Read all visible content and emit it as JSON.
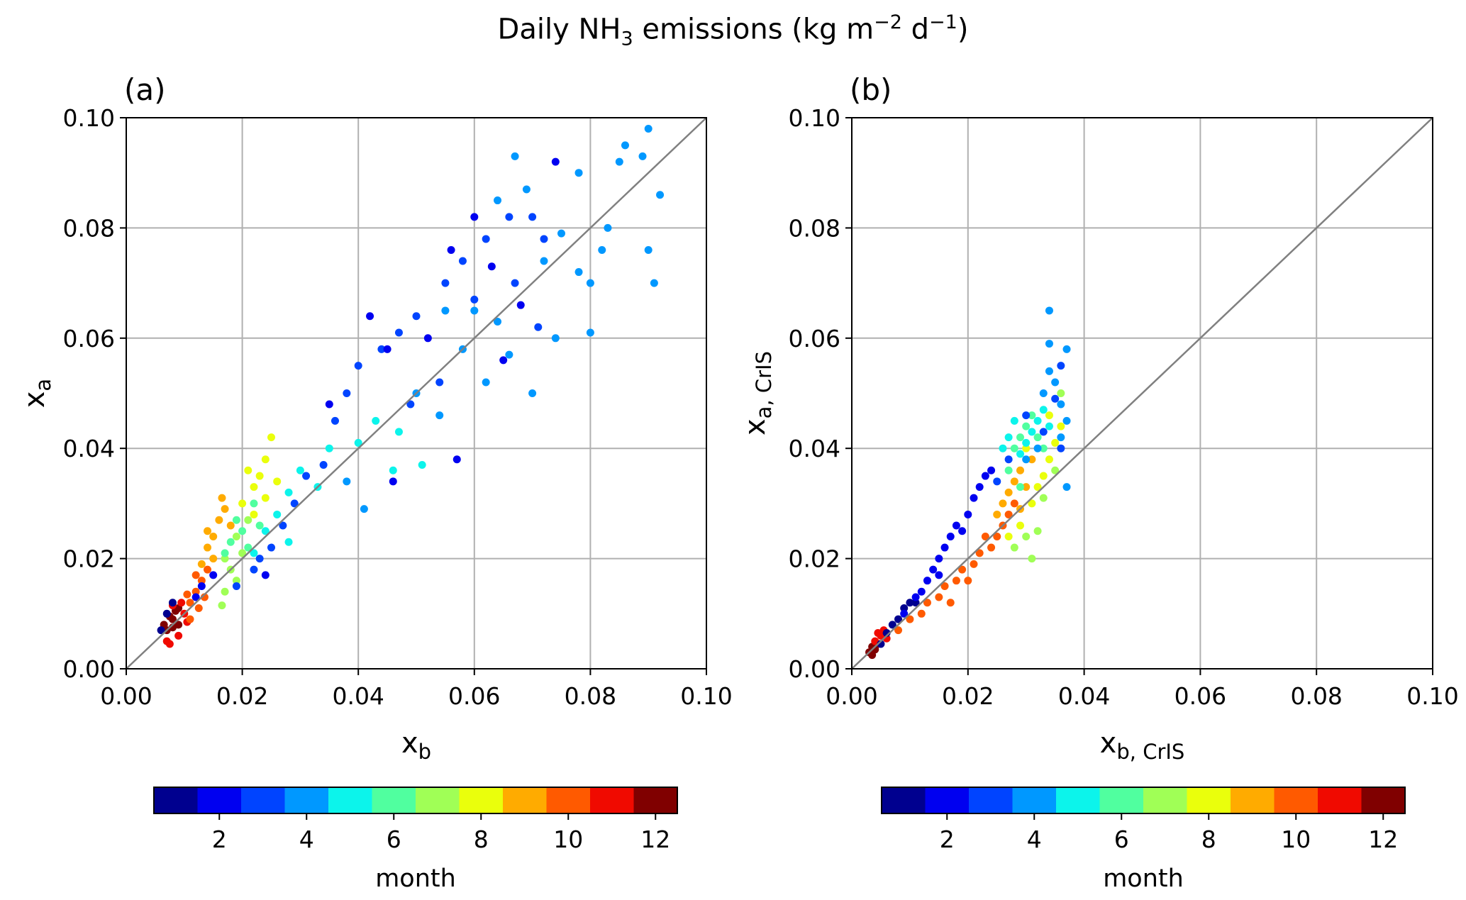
{
  "title_main": "Daily NH",
  "title_sub": "3",
  "title_rest": " emissions (kg m",
  "title_exp1": "−2",
  "title_mid": " d",
  "title_exp2": "−1",
  "title_end": ")",
  "colormap": [
    "#00008f",
    "#0000f0",
    "#0044ff",
    "#0098ff",
    "#0cf4eb",
    "#50ff9f",
    "#a0ff56",
    "#eaff0c",
    "#ffab00",
    "#ff5a00",
    "#f00a00",
    "#800000"
  ],
  "chart_data": [
    {
      "type": "scatter",
      "panel_label": "(a)",
      "xlabel": "x",
      "xlabel_sub": "b",
      "ylabel": "x",
      "ylabel_sub": "a",
      "xlim": [
        0,
        0.1
      ],
      "ylim": [
        0,
        0.1
      ],
      "xticks": [
        "0.00",
        "0.02",
        "0.04",
        "0.06",
        "0.08",
        "0.10"
      ],
      "yticks": [
        "0.00",
        "0.02",
        "0.04",
        "0.06",
        "0.08",
        "0.10"
      ],
      "grid": true,
      "identity_line": true,
      "color_by": "month",
      "colorbar": {
        "label": "month",
        "ticks": [
          "2",
          "4",
          "6",
          "8",
          "10",
          "12"
        ],
        "range": [
          0.5,
          12.5
        ]
      },
      "points": [
        [
          0.007,
          0.007,
          12
        ],
        [
          0.008,
          0.009,
          12
        ],
        [
          0.009,
          0.008,
          12
        ],
        [
          0.0075,
          0.0095,
          12
        ],
        [
          0.0085,
          0.0105,
          12
        ],
        [
          0.009,
          0.011,
          12
        ],
        [
          0.0065,
          0.008,
          12
        ],
        [
          0.008,
          0.0075,
          12
        ],
        [
          0.007,
          0.005,
          11
        ],
        [
          0.0075,
          0.0045,
          11
        ],
        [
          0.009,
          0.006,
          11
        ],
        [
          0.01,
          0.01,
          11
        ],
        [
          0.0095,
          0.012,
          11
        ],
        [
          0.008,
          0.0115,
          11
        ],
        [
          0.0105,
          0.0085,
          11
        ],
        [
          0.011,
          0.012,
          10
        ],
        [
          0.012,
          0.014,
          10
        ],
        [
          0.013,
          0.016,
          10
        ],
        [
          0.012,
          0.017,
          10
        ],
        [
          0.0105,
          0.0135,
          10
        ],
        [
          0.0135,
          0.013,
          10
        ],
        [
          0.011,
          0.009,
          10
        ],
        [
          0.014,
          0.018,
          10
        ],
        [
          0.0125,
          0.011,
          10
        ],
        [
          0.013,
          0.019,
          9
        ],
        [
          0.014,
          0.022,
          9
        ],
        [
          0.015,
          0.024,
          9
        ],
        [
          0.016,
          0.027,
          9
        ],
        [
          0.017,
          0.029,
          9
        ],
        [
          0.015,
          0.02,
          9
        ],
        [
          0.0165,
          0.031,
          9
        ],
        [
          0.014,
          0.025,
          9
        ],
        [
          0.018,
          0.026,
          9
        ],
        [
          0.017,
          0.02,
          7
        ],
        [
          0.018,
          0.018,
          7
        ],
        [
          0.019,
          0.016,
          7
        ],
        [
          0.017,
          0.014,
          7
        ],
        [
          0.0165,
          0.0115,
          7
        ],
        [
          0.02,
          0.021,
          7
        ],
        [
          0.019,
          0.024,
          7
        ],
        [
          0.021,
          0.027,
          7
        ],
        [
          0.02,
          0.03,
          8
        ],
        [
          0.022,
          0.033,
          8
        ],
        [
          0.023,
          0.035,
          8
        ],
        [
          0.024,
          0.038,
          8
        ],
        [
          0.025,
          0.042,
          8
        ],
        [
          0.021,
          0.036,
          8
        ],
        [
          0.026,
          0.034,
          8
        ],
        [
          0.022,
          0.028,
          8
        ],
        [
          0.024,
          0.031,
          8
        ],
        [
          0.018,
          0.023,
          6
        ],
        [
          0.019,
          0.027,
          6
        ],
        [
          0.02,
          0.025,
          6
        ],
        [
          0.021,
          0.022,
          6
        ],
        [
          0.022,
          0.03,
          6
        ],
        [
          0.017,
          0.021,
          6
        ],
        [
          0.023,
          0.026,
          6
        ],
        [
          0.022,
          0.021,
          5
        ],
        [
          0.024,
          0.025,
          5
        ],
        [
          0.026,
          0.028,
          5
        ],
        [
          0.028,
          0.032,
          5
        ],
        [
          0.03,
          0.036,
          5
        ],
        [
          0.033,
          0.033,
          5
        ],
        [
          0.035,
          0.04,
          5
        ],
        [
          0.04,
          0.041,
          5
        ],
        [
          0.043,
          0.045,
          5
        ],
        [
          0.047,
          0.043,
          5
        ],
        [
          0.051,
          0.037,
          5
        ],
        [
          0.046,
          0.036,
          5
        ],
        [
          0.028,
          0.023,
          5
        ],
        [
          0.019,
          0.015,
          3
        ],
        [
          0.022,
          0.018,
          3
        ],
        [
          0.023,
          0.02,
          3
        ],
        [
          0.025,
          0.022,
          3
        ],
        [
          0.027,
          0.026,
          3
        ],
        [
          0.029,
          0.03,
          3
        ],
        [
          0.031,
          0.035,
          3
        ],
        [
          0.034,
          0.037,
          3
        ],
        [
          0.036,
          0.045,
          3
        ],
        [
          0.038,
          0.05,
          3
        ],
        [
          0.04,
          0.055,
          3
        ],
        [
          0.044,
          0.058,
          3
        ],
        [
          0.047,
          0.061,
          3
        ],
        [
          0.05,
          0.064,
          3
        ],
        [
          0.055,
          0.07,
          3
        ],
        [
          0.058,
          0.074,
          3
        ],
        [
          0.062,
          0.078,
          3
        ],
        [
          0.066,
          0.082,
          3
        ],
        [
          0.07,
          0.082,
          3
        ],
        [
          0.072,
          0.078,
          3
        ],
        [
          0.067,
          0.07,
          3
        ],
        [
          0.06,
          0.067,
          3
        ],
        [
          0.054,
          0.052,
          3
        ],
        [
          0.049,
          0.048,
          3
        ],
        [
          0.071,
          0.062,
          3
        ],
        [
          0.012,
          0.013,
          2
        ],
        [
          0.013,
          0.015,
          2
        ],
        [
          0.015,
          0.017,
          2
        ],
        [
          0.024,
          0.017,
          2
        ],
        [
          0.035,
          0.048,
          2
        ],
        [
          0.042,
          0.064,
          2
        ],
        [
          0.045,
          0.058,
          2
        ],
        [
          0.056,
          0.076,
          2
        ],
        [
          0.06,
          0.082,
          2
        ],
        [
          0.063,
          0.073,
          2
        ],
        [
          0.068,
          0.066,
          2
        ],
        [
          0.074,
          0.092,
          2
        ],
        [
          0.065,
          0.056,
          2
        ],
        [
          0.057,
          0.038,
          2
        ],
        [
          0.046,
          0.034,
          2
        ],
        [
          0.052,
          0.06,
          2
        ],
        [
          0.007,
          0.01,
          1
        ],
        [
          0.008,
          0.012,
          1
        ],
        [
          0.006,
          0.007,
          1
        ],
        [
          0.05,
          0.05,
          4
        ],
        [
          0.054,
          0.046,
          4
        ],
        [
          0.058,
          0.058,
          4
        ],
        [
          0.062,
          0.052,
          4
        ],
        [
          0.064,
          0.063,
          4
        ],
        [
          0.067,
          0.093,
          4
        ],
        [
          0.069,
          0.087,
          4
        ],
        [
          0.072,
          0.074,
          4
        ],
        [
          0.075,
          0.079,
          4
        ],
        [
          0.078,
          0.072,
          4
        ],
        [
          0.08,
          0.07,
          4
        ],
        [
          0.08,
          0.061,
          4
        ],
        [
          0.082,
          0.076,
          4
        ],
        [
          0.083,
          0.08,
          4
        ],
        [
          0.085,
          0.092,
          4
        ],
        [
          0.086,
          0.095,
          4
        ],
        [
          0.089,
          0.093,
          4
        ],
        [
          0.09,
          0.098,
          4
        ],
        [
          0.09,
          0.076,
          4
        ],
        [
          0.091,
          0.07,
          4
        ],
        [
          0.092,
          0.086,
          4
        ],
        [
          0.07,
          0.05,
          4
        ],
        [
          0.066,
          0.057,
          4
        ],
        [
          0.074,
          0.06,
          4
        ],
        [
          0.06,
          0.065,
          4
        ],
        [
          0.064,
          0.085,
          4
        ],
        [
          0.078,
          0.09,
          4
        ],
        [
          0.055,
          0.065,
          4
        ],
        [
          0.041,
          0.029,
          4
        ],
        [
          0.038,
          0.034,
          4
        ]
      ]
    },
    {
      "type": "scatter",
      "panel_label": "(b)",
      "xlabel": "x",
      "xlabel_sub": "b, CrIS",
      "ylabel": "x",
      "ylabel_sub": "a, CrIS",
      "xlim": [
        0,
        0.1
      ],
      "ylim": [
        0,
        0.1
      ],
      "xticks": [
        "0.00",
        "0.02",
        "0.04",
        "0.06",
        "0.08",
        "0.10"
      ],
      "yticks": [
        "0.00",
        "0.02",
        "0.04",
        "0.06",
        "0.08",
        "0.10"
      ],
      "grid": true,
      "identity_line": true,
      "color_by": "month",
      "colorbar": {
        "label": "month",
        "ticks": [
          "2",
          "4",
          "6",
          "8",
          "10",
          "12"
        ],
        "range": [
          0.5,
          12.5
        ]
      },
      "points": [
        [
          0.003,
          0.003,
          12
        ],
        [
          0.0035,
          0.004,
          12
        ],
        [
          0.004,
          0.0035,
          12
        ],
        [
          0.0035,
          0.0025,
          12
        ],
        [
          0.0045,
          0.0045,
          12
        ],
        [
          0.004,
          0.005,
          11
        ],
        [
          0.005,
          0.006,
          11
        ],
        [
          0.0055,
          0.007,
          11
        ],
        [
          0.0045,
          0.0065,
          11
        ],
        [
          0.006,
          0.0055,
          11
        ],
        [
          0.005,
          0.0045,
          1
        ],
        [
          0.006,
          0.0065,
          1
        ],
        [
          0.007,
          0.008,
          1
        ],
        [
          0.008,
          0.009,
          1
        ],
        [
          0.009,
          0.011,
          1
        ],
        [
          0.01,
          0.012,
          1
        ],
        [
          0.011,
          0.012,
          1
        ],
        [
          0.009,
          0.01,
          2
        ],
        [
          0.011,
          0.013,
          2
        ],
        [
          0.012,
          0.014,
          2
        ],
        [
          0.013,
          0.016,
          2
        ],
        [
          0.014,
          0.018,
          2
        ],
        [
          0.015,
          0.02,
          2
        ],
        [
          0.016,
          0.022,
          2
        ],
        [
          0.017,
          0.024,
          2
        ],
        [
          0.018,
          0.026,
          2
        ],
        [
          0.015,
          0.017,
          2
        ],
        [
          0.02,
          0.028,
          2
        ],
        [
          0.021,
          0.031,
          2
        ],
        [
          0.022,
          0.033,
          2
        ],
        [
          0.023,
          0.035,
          2
        ],
        [
          0.024,
          0.036,
          2
        ],
        [
          0.019,
          0.025,
          2
        ],
        [
          0.008,
          0.007,
          10
        ],
        [
          0.01,
          0.009,
          10
        ],
        [
          0.012,
          0.01,
          10
        ],
        [
          0.013,
          0.012,
          10
        ],
        [
          0.015,
          0.013,
          10
        ],
        [
          0.016,
          0.015,
          10
        ],
        [
          0.018,
          0.016,
          10
        ],
        [
          0.019,
          0.018,
          10
        ],
        [
          0.021,
          0.019,
          10
        ],
        [
          0.022,
          0.021,
          10
        ],
        [
          0.024,
          0.022,
          10
        ],
        [
          0.025,
          0.024,
          10
        ],
        [
          0.026,
          0.026,
          10
        ],
        [
          0.027,
          0.028,
          10
        ],
        [
          0.028,
          0.03,
          10
        ],
        [
          0.023,
          0.024,
          10
        ],
        [
          0.02,
          0.016,
          10
        ],
        [
          0.017,
          0.012,
          10
        ],
        [
          0.026,
          0.03,
          9
        ],
        [
          0.027,
          0.032,
          9
        ],
        [
          0.028,
          0.034,
          9
        ],
        [
          0.029,
          0.036,
          9
        ],
        [
          0.03,
          0.033,
          9
        ],
        [
          0.031,
          0.038,
          9
        ],
        [
          0.029,
          0.029,
          9
        ],
        [
          0.025,
          0.028,
          9
        ],
        [
          0.027,
          0.024,
          8
        ],
        [
          0.029,
          0.026,
          8
        ],
        [
          0.031,
          0.03,
          8
        ],
        [
          0.033,
          0.035,
          8
        ],
        [
          0.034,
          0.038,
          8
        ],
        [
          0.035,
          0.041,
          8
        ],
        [
          0.036,
          0.044,
          8
        ],
        [
          0.034,
          0.046,
          8
        ],
        [
          0.032,
          0.033,
          8
        ],
        [
          0.03,
          0.04,
          8
        ],
        [
          0.028,
          0.022,
          7
        ],
        [
          0.03,
          0.024,
          7
        ],
        [
          0.031,
          0.02,
          7
        ],
        [
          0.032,
          0.025,
          7
        ],
        [
          0.033,
          0.031,
          7
        ],
        [
          0.036,
          0.05,
          7
        ],
        [
          0.035,
          0.036,
          7
        ],
        [
          0.027,
          0.036,
          6
        ],
        [
          0.028,
          0.04,
          6
        ],
        [
          0.029,
          0.042,
          6
        ],
        [
          0.03,
          0.044,
          6
        ],
        [
          0.031,
          0.046,
          6
        ],
        [
          0.032,
          0.042,
          6
        ],
        [
          0.033,
          0.04,
          6
        ],
        [
          0.029,
          0.033,
          6
        ],
        [
          0.027,
          0.042,
          5
        ],
        [
          0.028,
          0.045,
          5
        ],
        [
          0.029,
          0.039,
          5
        ],
        [
          0.03,
          0.041,
          5
        ],
        [
          0.031,
          0.043,
          5
        ],
        [
          0.032,
          0.045,
          5
        ],
        [
          0.033,
          0.047,
          5
        ],
        [
          0.034,
          0.044,
          5
        ],
        [
          0.026,
          0.04,
          5
        ],
        [
          0.03,
          0.038,
          4
        ],
        [
          0.032,
          0.04,
          4
        ],
        [
          0.033,
          0.05,
          4
        ],
        [
          0.034,
          0.054,
          4
        ],
        [
          0.034,
          0.059,
          4
        ],
        [
          0.034,
          0.065,
          4
        ],
        [
          0.035,
          0.052,
          4
        ],
        [
          0.036,
          0.048,
          4
        ],
        [
          0.037,
          0.045,
          4
        ],
        [
          0.037,
          0.033,
          4
        ],
        [
          0.037,
          0.058,
          4
        ],
        [
          0.036,
          0.042,
          4
        ],
        [
          0.025,
          0.034,
          3
        ],
        [
          0.027,
          0.038,
          3
        ],
        [
          0.03,
          0.046,
          3
        ],
        [
          0.035,
          0.049,
          3
        ],
        [
          0.036,
          0.055,
          3
        ],
        [
          0.033,
          0.043,
          3
        ],
        [
          0.036,
          0.04,
          3
        ]
      ]
    }
  ]
}
